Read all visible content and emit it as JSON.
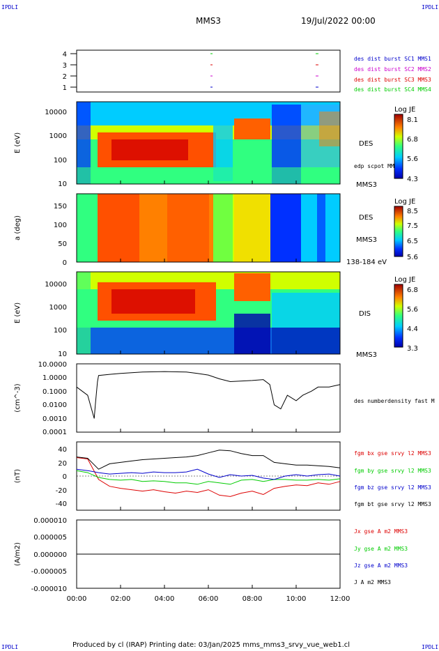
{
  "header": {
    "spacecraft": "MMS3",
    "date": "19/Jul/2022 00:00"
  },
  "corner_marks": {
    "top_left": "IPDLI",
    "top_right": "IPDLI",
    "bottom_left": "IPDLI",
    "bottom_right": "IPDLI"
  },
  "footer": "Produced by cl (IRAP)   Printing date: 03/Jan/2025   mms_mms3_srvy_vue_web1.cl",
  "colors": {
    "red": "#dd0000",
    "green": "#00cc00",
    "blue": "#0000cc",
    "magenta": "#cc00cc",
    "black": "#000000"
  },
  "x_axis": {
    "tick_labels": [
      "00:00",
      "02:00",
      "04:00",
      "06:00",
      "08:00",
      "10:00",
      "12:00"
    ],
    "range_hours": [
      0,
      12
    ]
  },
  "panels": {
    "availability": {
      "y_ticks": [
        "4",
        "3",
        "2",
        "1"
      ],
      "legend": [
        {
          "label": "des dist burst SC1 MMS1",
          "color": "#0000cc"
        },
        {
          "label": "des dist burst SC2 MMS2",
          "color": "#cc00cc"
        },
        {
          "label": "des dist burst SC3 MMS3",
          "color": "#dd0000"
        },
        {
          "label": "des dist burst SC4 MMS4",
          "color": "#00cc00"
        }
      ]
    },
    "des_energy": {
      "ylabel": "E (eV)",
      "y_ticks": [
        "10000",
        "1000",
        "100",
        "10"
      ],
      "label_main": "DES",
      "label_sc": "MMS3",
      "label_extra": "edp scpot MMS3",
      "colorbar": {
        "title": "Log JE",
        "ticks": [
          "8.1",
          "6.8",
          "5.6",
          "4.3"
        ]
      }
    },
    "des_pitch": {
      "ylabel": "a (deg)",
      "y_ticks": [
        "150",
        "100",
        "50",
        "0"
      ],
      "label_main": "DES",
      "label_sc": "MMS3",
      "label_extra": "138-184 eV",
      "colorbar": {
        "title": "Log JE",
        "ticks": [
          "8.5",
          "7.5",
          "6.5",
          "5.6"
        ]
      }
    },
    "dis_energy": {
      "ylabel": "E (eV)",
      "y_ticks": [
        "10000",
        "1000",
        "100",
        "10"
      ],
      "label_main": "DIS",
      "label_sc": "MMS3",
      "colorbar": {
        "title": "Log JE",
        "ticks": [
          "6.8",
          "5.6",
          "4.4",
          "3.3"
        ]
      }
    },
    "density": {
      "ylabel": "(cm^-3)",
      "y_ticks": [
        "10.0000",
        "1.0000",
        "0.1000",
        "0.0100",
        "0.0010",
        "0.0001"
      ],
      "legend": [
        {
          "label": "des numberdensity fast M",
          "color": "#000000"
        }
      ]
    },
    "bfield": {
      "ylabel": "(nT)",
      "y_ticks": [
        "40",
        "20",
        "0",
        "-20",
        "-40"
      ],
      "legend": [
        {
          "label": "fgm bx gse srvy l2 MMS3",
          "color": "#dd0000"
        },
        {
          "label": "fgm by gse srvy l2 MMS3",
          "color": "#00cc00"
        },
        {
          "label": "fgm bz gse srvy l2 MMS3",
          "color": "#0000cc"
        },
        {
          "label": "fgm bt gse srvy l2 MMS3",
          "color": "#000000"
        }
      ]
    },
    "current": {
      "ylabel": "(A/m2)",
      "y_ticks": [
        "0.000010",
        "0.000005",
        "0.000000",
        "-0.000005",
        "-0.000010"
      ],
      "legend": [
        {
          "label": "Jx gse A m2 MMS3",
          "color": "#dd0000"
        },
        {
          "label": "Jy gse A m2 MMS3",
          "color": "#00cc00"
        },
        {
          "label": "Jz gse A m2 MMS3",
          "color": "#0000cc"
        },
        {
          "label": "J A m2 MMS3",
          "color": "#000000"
        }
      ]
    }
  },
  "chart_data": [
    {
      "type": "line",
      "title": "MMS3",
      "ylabel": "(cm^-3)",
      "yscale": "log",
      "ylim": [
        0.0001,
        10
      ],
      "x": [
        0,
        0.5,
        0.8,
        0.85,
        0.95,
        1.0,
        1.5,
        2,
        3,
        4,
        5,
        5.5,
        6,
        6.5,
        7,
        8,
        8.5,
        8.8,
        9.0,
        9.3,
        9.6,
        10,
        10.3,
        10.7,
        11,
        11.5,
        12
      ],
      "series": [
        {
          "values": [
            0.2,
            0.05,
            0.001,
            0.01,
            0.5,
            1.4,
            1.7,
            2.0,
            2.5,
            2.7,
            2.5,
            2.0,
            1.5,
            0.8,
            0.5,
            0.6,
            0.7,
            0.3,
            0.01,
            0.005,
            0.05,
            0.02,
            0.05,
            0.1,
            0.2,
            0.2,
            0.3
          ]
        }
      ]
    },
    {
      "type": "line",
      "ylabel": "(nT)",
      "ylim": [
        -50,
        50
      ],
      "x": [
        0,
        0.5,
        1,
        1.5,
        2,
        2.5,
        3,
        3.5,
        4,
        4.5,
        5,
        5.5,
        6,
        6.5,
        7,
        7.5,
        8,
        8.5,
        9,
        9.5,
        10,
        10.5,
        11,
        11.5,
        12
      ],
      "series": [
        {
          "name": "fgm bx gse srvy l2 MMS3",
          "color": "#dd0000",
          "values": [
            27,
            25,
            -5,
            -15,
            -18,
            -20,
            -22,
            -20,
            -23,
            -25,
            -22,
            -24,
            -20,
            -28,
            -30,
            -25,
            -22,
            -27,
            -18,
            -15,
            -13,
            -14,
            -10,
            -12,
            -8
          ]
        },
        {
          "name": "fgm by gse srvy l2 MMS3",
          "color": "#00cc00",
          "values": [
            8,
            5,
            -2,
            -5,
            -6,
            -5,
            -8,
            -7,
            -8,
            -10,
            -10,
            -12,
            -8,
            -10,
            -12,
            -6,
            -5,
            -8,
            -5,
            -5,
            -6,
            -6,
            -5,
            -6,
            -4
          ]
        },
        {
          "name": "fgm bz gse srvy l2 MMS3",
          "color": "#0000cc",
          "values": [
            10,
            8,
            5,
            3,
            4,
            5,
            4,
            6,
            5,
            5,
            6,
            10,
            3,
            -2,
            2,
            0,
            1,
            -3,
            -5,
            0,
            2,
            0,
            2,
            3,
            0
          ]
        },
        {
          "name": "fgm bt gse srvy l2 MMS3",
          "color": "#000000",
          "values": [
            28,
            26,
            10,
            18,
            20,
            22,
            24,
            25,
            26,
            27,
            28,
            30,
            34,
            38,
            37,
            33,
            30,
            30,
            20,
            18,
            16,
            16,
            15,
            14,
            12
          ]
        }
      ]
    },
    {
      "type": "line",
      "ylabel": "(A/m2)",
      "ylim": [
        -1e-05,
        1e-05
      ],
      "x": [
        0,
        12
      ],
      "series": [
        {
          "name": "Jx gse A m2 MMS3",
          "values": [
            0,
            0
          ]
        },
        {
          "name": "Jy gse A m2 MMS3",
          "values": [
            0,
            0
          ]
        },
        {
          "name": "Jz gse A m2 MMS3",
          "values": [
            0,
            0
          ]
        },
        {
          "name": "J A m2 MMS3",
          "values": [
            0,
            0
          ]
        }
      ]
    }
  ]
}
